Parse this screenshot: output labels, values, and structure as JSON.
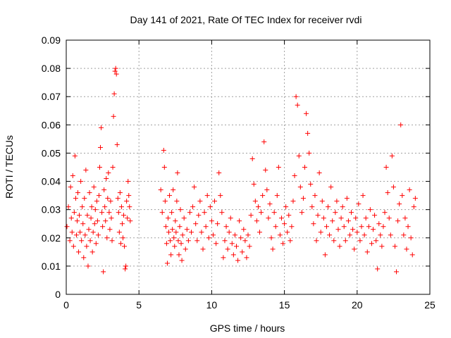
{
  "chart_data": {
    "type": "scatter",
    "title": "Day 141 of 2021, Rate Of TEC Index for receiver rvdi",
    "xlabel": "GPS time / hours",
    "ylabel": "ROTI / TECUs",
    "xlim": [
      0,
      25
    ],
    "ylim": [
      0,
      0.09
    ],
    "xticks": [
      0,
      5,
      10,
      15,
      20,
      25
    ],
    "xtick_labels": [
      "0",
      "5",
      "10",
      "15",
      "20",
      "25"
    ],
    "yticks": [
      0,
      0.01,
      0.02,
      0.03,
      0.04,
      0.05,
      0.06,
      0.07,
      0.08,
      0.09
    ],
    "ytick_labels": [
      "0",
      "0.01",
      "0.02",
      "0.03",
      "0.04",
      "0.05",
      "0.06",
      "0.07",
      "0.08",
      "0.09"
    ],
    "grid": true,
    "marker": "plus",
    "color": "#ff0000",
    "series": [
      {
        "values_xy": [
          [
            0.05,
            0.024
          ],
          [
            0.15,
            0.031
          ],
          [
            0.25,
            0.019
          ],
          [
            0.3,
            0.038
          ],
          [
            0.35,
            0.027
          ],
          [
            0.4,
            0.022
          ],
          [
            0.45,
            0.042
          ],
          [
            0.5,
            0.017
          ],
          [
            0.55,
            0.029
          ],
          [
            0.6,
            0.049
          ],
          [
            0.65,
            0.034
          ],
          [
            0.7,
            0.021
          ],
          [
            0.75,
            0.026
          ],
          [
            0.8,
            0.036
          ],
          [
            0.85,
            0.015
          ],
          [
            0.9,
            0.028
          ],
          [
            0.95,
            0.022
          ],
          [
            1.0,
            0.04
          ],
          [
            1.05,
            0.019
          ],
          [
            1.1,
            0.031
          ],
          [
            1.15,
            0.025
          ],
          [
            1.2,
            0.013
          ],
          [
            1.25,
            0.034
          ],
          [
            1.3,
            0.021
          ],
          [
            1.35,
            0.044
          ],
          [
            1.4,
            0.017
          ],
          [
            1.45,
            0.028
          ],
          [
            1.5,
            0.01
          ],
          [
            1.55,
            0.023
          ],
          [
            1.6,
            0.036
          ],
          [
            1.65,
            0.019
          ],
          [
            1.7,
            0.027
          ],
          [
            1.75,
            0.031
          ],
          [
            1.8,
            0.015
          ],
          [
            1.85,
            0.022
          ],
          [
            1.9,
            0.038
          ],
          [
            1.95,
            0.025
          ],
          [
            2.0,
            0.03
          ],
          [
            2.05,
            0.018
          ],
          [
            2.1,
            0.033
          ],
          [
            2.15,
            0.026
          ],
          [
            2.2,
            0.021
          ],
          [
            2.25,
            0.035
          ],
          [
            2.3,
            0.045
          ],
          [
            2.35,
            0.052
          ],
          [
            2.4,
            0.059
          ],
          [
            2.45,
            0.029
          ],
          [
            2.5,
            0.024
          ],
          [
            2.55,
            0.008
          ],
          [
            2.6,
            0.037
          ],
          [
            2.65,
            0.031
          ],
          [
            2.7,
            0.026
          ],
          [
            2.75,
            0.041
          ],
          [
            2.8,
            0.02
          ],
          [
            2.85,
            0.034
          ],
          [
            2.9,
            0.043
          ],
          [
            2.95,
            0.029
          ],
          [
            3.0,
            0.023
          ],
          [
            3.05,
            0.033
          ],
          [
            3.1,
            0.027
          ],
          [
            3.15,
            0.019
          ],
          [
            3.2,
            0.045
          ],
          [
            3.25,
            0.063
          ],
          [
            3.3,
            0.071
          ],
          [
            3.35,
            0.079
          ],
          [
            3.4,
            0.08
          ],
          [
            3.45,
            0.078
          ],
          [
            3.5,
            0.053
          ],
          [
            3.55,
            0.034
          ],
          [
            3.6,
            0.029
          ],
          [
            3.65,
            0.022
          ],
          [
            3.7,
            0.036
          ],
          [
            3.75,
            0.018
          ],
          [
            3.8,
            0.031
          ],
          [
            3.85,
            0.025
          ],
          [
            3.9,
            0.02
          ],
          [
            3.95,
            0.028
          ],
          [
            4.0,
            0.017
          ],
          [
            4.05,
            0.009
          ],
          [
            4.1,
            0.01
          ],
          [
            4.15,
            0.033
          ],
          [
            4.2,
            0.027
          ],
          [
            4.25,
            0.04
          ],
          [
            4.3,
            0.035
          ],
          [
            4.35,
            0.031
          ],
          [
            4.4,
            0.026
          ],
          [
            6.5,
            0.037
          ],
          [
            6.6,
            0.029
          ],
          [
            6.7,
            0.051
          ],
          [
            6.75,
            0.045
          ],
          [
            6.8,
            0.033
          ],
          [
            6.85,
            0.024
          ],
          [
            6.9,
            0.018
          ],
          [
            6.95,
            0.011
          ],
          [
            7.0,
            0.027
          ],
          [
            7.05,
            0.022
          ],
          [
            7.1,
            0.035
          ],
          [
            7.15,
            0.019
          ],
          [
            7.2,
            0.014
          ],
          [
            7.25,
            0.029
          ],
          [
            7.3,
            0.023
          ],
          [
            7.35,
            0.037
          ],
          [
            7.4,
            0.02
          ],
          [
            7.45,
            0.017
          ],
          [
            7.5,
            0.026
          ],
          [
            7.55,
            0.022
          ],
          [
            7.6,
            0.033
          ],
          [
            7.65,
            0.043
          ],
          [
            7.7,
            0.019
          ],
          [
            7.75,
            0.014
          ],
          [
            7.8,
            0.024
          ],
          [
            7.85,
            0.03
          ],
          [
            7.9,
            0.018
          ],
          [
            7.95,
            0.012
          ],
          [
            8.0,
            0.021
          ],
          [
            8.1,
            0.027
          ],
          [
            8.2,
            0.016
          ],
          [
            8.3,
            0.023
          ],
          [
            8.4,
            0.019
          ],
          [
            8.5,
            0.029
          ],
          [
            8.6,
            0.022
          ],
          [
            8.7,
            0.031
          ],
          [
            8.8,
            0.038
          ],
          [
            8.9,
            0.025
          ],
          [
            9.0,
            0.019
          ],
          [
            9.1,
            0.028
          ],
          [
            9.2,
            0.033
          ],
          [
            9.3,
            0.022
          ],
          [
            9.4,
            0.016
          ],
          [
            9.5,
            0.029
          ],
          [
            9.6,
            0.024
          ],
          [
            9.7,
            0.035
          ],
          [
            9.8,
            0.02
          ],
          [
            9.9,
            0.031
          ],
          [
            10.0,
            0.026
          ],
          [
            10.1,
            0.021
          ],
          [
            10.2,
            0.033
          ],
          [
            10.3,
            0.018
          ],
          [
            10.4,
            0.025
          ],
          [
            10.5,
            0.043
          ],
          [
            10.6,
            0.035
          ],
          [
            10.7,
            0.029
          ],
          [
            10.8,
            0.013
          ],
          [
            10.9,
            0.019
          ],
          [
            11.0,
            0.024
          ],
          [
            11.1,
            0.016
          ],
          [
            11.2,
            0.022
          ],
          [
            11.3,
            0.027
          ],
          [
            11.4,
            0.018
          ],
          [
            11.5,
            0.014
          ],
          [
            11.6,
            0.021
          ],
          [
            11.7,
            0.017
          ],
          [
            11.8,
            0.012
          ],
          [
            11.9,
            0.026
          ],
          [
            12.0,
            0.02
          ],
          [
            12.1,
            0.015
          ],
          [
            12.2,
            0.023
          ],
          [
            12.3,
            0.019
          ],
          [
            12.4,
            0.013
          ],
          [
            12.5,
            0.021
          ],
          [
            12.6,
            0.017
          ],
          [
            12.7,
            0.028
          ],
          [
            12.8,
            0.048
          ],
          [
            12.9,
            0.039
          ],
          [
            13.0,
            0.033
          ],
          [
            13.1,
            0.026
          ],
          [
            13.2,
            0.031
          ],
          [
            13.3,
            0.022
          ],
          [
            13.4,
            0.029
          ],
          [
            13.5,
            0.035
          ],
          [
            13.6,
            0.054
          ],
          [
            13.7,
            0.044
          ],
          [
            13.8,
            0.037
          ],
          [
            13.9,
            0.027
          ],
          [
            14.0,
            0.032
          ],
          [
            14.1,
            0.02
          ],
          [
            14.2,
            0.016
          ],
          [
            14.3,
            0.029
          ],
          [
            14.4,
            0.024
          ],
          [
            14.5,
            0.035
          ],
          [
            14.6,
            0.045
          ],
          [
            14.7,
            0.021
          ],
          [
            14.8,
            0.027
          ],
          [
            14.9,
            0.018
          ],
          [
            15.0,
            0.025
          ],
          [
            15.1,
            0.031
          ],
          [
            15.2,
            0.022
          ],
          [
            15.3,
            0.028
          ],
          [
            15.4,
            0.019
          ],
          [
            15.5,
            0.024
          ],
          [
            15.6,
            0.033
          ],
          [
            15.7,
            0.042
          ],
          [
            15.8,
            0.07
          ],
          [
            15.9,
            0.067
          ],
          [
            16.0,
            0.049
          ],
          [
            16.1,
            0.038
          ],
          [
            16.2,
            0.029
          ],
          [
            16.3,
            0.034
          ],
          [
            16.4,
            0.045
          ],
          [
            16.5,
            0.064
          ],
          [
            16.6,
            0.057
          ],
          [
            16.7,
            0.05
          ],
          [
            16.8,
            0.039
          ],
          [
            16.9,
            0.031
          ],
          [
            17.0,
            0.025
          ],
          [
            17.1,
            0.035
          ],
          [
            17.2,
            0.019
          ],
          [
            17.3,
            0.028
          ],
          [
            17.4,
            0.043
          ],
          [
            17.5,
            0.022
          ],
          [
            17.6,
            0.033
          ],
          [
            17.7,
            0.027
          ],
          [
            17.8,
            0.014
          ],
          [
            17.9,
            0.024
          ],
          [
            18.0,
            0.031
          ],
          [
            18.1,
            0.021
          ],
          [
            18.2,
            0.038
          ],
          [
            18.3,
            0.026
          ],
          [
            18.4,
            0.019
          ],
          [
            18.5,
            0.029
          ],
          [
            18.6,
            0.033
          ],
          [
            18.7,
            0.023
          ],
          [
            18.8,
            0.017
          ],
          [
            18.9,
            0.027
          ],
          [
            19.0,
            0.031
          ],
          [
            19.1,
            0.024
          ],
          [
            19.2,
            0.019
          ],
          [
            19.3,
            0.034
          ],
          [
            19.4,
            0.026
          ],
          [
            19.5,
            0.021
          ],
          [
            19.6,
            0.029
          ],
          [
            19.7,
            0.023
          ],
          [
            19.8,
            0.016
          ],
          [
            19.9,
            0.027
          ],
          [
            20.0,
            0.022
          ],
          [
            20.1,
            0.032
          ],
          [
            20.2,
            0.019
          ],
          [
            20.3,
            0.024
          ],
          [
            20.4,
            0.035
          ],
          [
            20.5,
            0.021
          ],
          [
            20.6,
            0.027
          ],
          [
            20.7,
            0.015
          ],
          [
            20.8,
            0.024
          ],
          [
            20.9,
            0.03
          ],
          [
            21.0,
            0.018
          ],
          [
            21.1,
            0.023
          ],
          [
            21.2,
            0.028
          ],
          [
            21.3,
            0.019
          ],
          [
            21.4,
            0.009
          ],
          [
            21.5,
            0.025
          ],
          [
            21.6,
            0.021
          ],
          [
            21.7,
            0.017
          ],
          [
            21.8,
            0.024
          ],
          [
            21.9,
            0.029
          ],
          [
            22.0,
            0.045
          ],
          [
            22.1,
            0.036
          ],
          [
            22.2,
            0.027
          ],
          [
            22.3,
            0.021
          ],
          [
            22.4,
            0.049
          ],
          [
            22.5,
            0.038
          ],
          [
            22.6,
            0.017
          ],
          [
            22.7,
            0.008
          ],
          [
            22.8,
            0.026
          ],
          [
            22.9,
            0.032
          ],
          [
            23.0,
            0.06
          ],
          [
            23.1,
            0.035
          ],
          [
            23.2,
            0.021
          ],
          [
            23.3,
            0.027
          ],
          [
            23.4,
            0.016
          ],
          [
            23.5,
            0.024
          ],
          [
            23.6,
            0.037
          ],
          [
            23.7,
            0.02
          ],
          [
            23.8,
            0.014
          ],
          [
            23.9,
            0.031
          ],
          [
            24.0,
            0.034
          ]
        ]
      }
    ]
  }
}
